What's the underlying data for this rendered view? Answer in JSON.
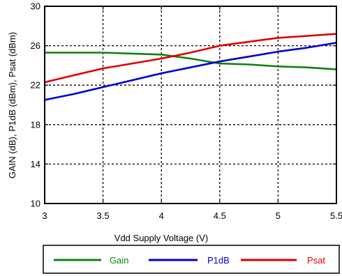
{
  "chart_data": {
    "type": "line",
    "title": "",
    "xlabel": "Vdd Supply Voltage (V)",
    "ylabel": "GAIN (dB), P1dB (dBm), Psat (dBm)",
    "xlim": [
      3,
      5.5
    ],
    "ylim": [
      10,
      30
    ],
    "xticks": [
      "3",
      "3.5",
      "4",
      "4.5",
      "5",
      "5.5"
    ],
    "yticks": [
      "10",
      "14",
      "18",
      "22",
      "26",
      "30"
    ],
    "grid": "dotted",
    "legend_position": "bottom",
    "series": [
      {
        "name": "Gain",
        "color": "#108010",
        "x": [
          3,
          3.25,
          3.5,
          3.75,
          4,
          4.25,
          4.5,
          4.75,
          5,
          5.25,
          5.5
        ],
        "y": [
          25.3,
          25.3,
          25.3,
          25.2,
          25.1,
          24.7,
          24.2,
          24.1,
          23.9,
          23.8,
          23.6
        ]
      },
      {
        "name": "P1dB",
        "color": "#0000cc",
        "x": [
          3,
          3.25,
          3.5,
          3.75,
          4,
          4.25,
          4.5,
          4.75,
          5,
          5.25,
          5.5
        ],
        "y": [
          20.5,
          21.1,
          21.8,
          22.5,
          23.2,
          23.8,
          24.4,
          24.9,
          25.4,
          25.8,
          26.3
        ]
      },
      {
        "name": "Psat",
        "color": "#dd0000",
        "x": [
          3,
          3.25,
          3.5,
          3.75,
          4,
          4.25,
          4.5,
          4.75,
          5,
          5.25,
          5.5
        ],
        "y": [
          22.3,
          23.0,
          23.7,
          24.2,
          24.7,
          25.3,
          26.0,
          26.4,
          26.8,
          27.0,
          27.2
        ]
      }
    ]
  }
}
